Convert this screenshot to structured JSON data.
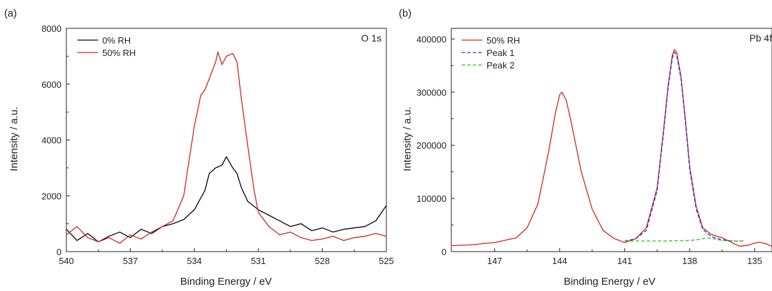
{
  "chart_data": [
    {
      "type": "line",
      "panel_label": "(a)",
      "corner_label": "O 1s",
      "xlabel": "Binding Energy / eV",
      "ylabel": "Intensity / a.u.",
      "xlim": [
        540,
        525
      ],
      "ylim": [
        0,
        8000
      ],
      "x_reversed": true,
      "xticks": [
        540,
        537,
        534,
        531,
        528,
        525
      ],
      "yticks": [
        0,
        2000,
        4000,
        6000,
        8000
      ],
      "legend_position": "top-left",
      "series": [
        {
          "name": "0% RH",
          "color": "#000000",
          "style": "solid",
          "points": [
            [
              540,
              800
            ],
            [
              539.5,
              400
            ],
            [
              539,
              650
            ],
            [
              538.5,
              350
            ],
            [
              538,
              550
            ],
            [
              537.5,
              700
            ],
            [
              537,
              500
            ],
            [
              536.5,
              800
            ],
            [
              536,
              650
            ],
            [
              535.5,
              900
            ],
            [
              535,
              1000
            ],
            [
              534.5,
              1150
            ],
            [
              534,
              1500
            ],
            [
              533.5,
              2200
            ],
            [
              533.3,
              2800
            ],
            [
              533,
              3000
            ],
            [
              532.7,
              3100
            ],
            [
              532.5,
              3400
            ],
            [
              532.2,
              3000
            ],
            [
              532,
              2800
            ],
            [
              531.8,
              2300
            ],
            [
              531.5,
              1800
            ],
            [
              531,
              1500
            ],
            [
              530.5,
              1300
            ],
            [
              530,
              1100
            ],
            [
              529.5,
              900
            ],
            [
              529,
              1000
            ],
            [
              528.5,
              750
            ],
            [
              528,
              850
            ],
            [
              527.5,
              700
            ],
            [
              527,
              800
            ],
            [
              526.5,
              850
            ],
            [
              526,
              900
            ],
            [
              525.5,
              1100
            ],
            [
              525,
              1650
            ]
          ]
        },
        {
          "name": "50% RH",
          "color": "#d42020",
          "style": "solid",
          "points": [
            [
              540,
              600
            ],
            [
              539.5,
              900
            ],
            [
              539,
              500
            ],
            [
              538.5,
              350
            ],
            [
              538,
              500
            ],
            [
              537.5,
              300
            ],
            [
              537,
              600
            ],
            [
              536.5,
              450
            ],
            [
              536,
              700
            ],
            [
              535.5,
              900
            ],
            [
              535,
              1100
            ],
            [
              534.5,
              2000
            ],
            [
              534.2,
              3500
            ],
            [
              534,
              4500
            ],
            [
              533.7,
              5600
            ],
            [
              533.5,
              5800
            ],
            [
              533.2,
              6400
            ],
            [
              533,
              6800
            ],
            [
              532.9,
              7150
            ],
            [
              532.7,
              6700
            ],
            [
              532.5,
              7000
            ],
            [
              532.2,
              7100
            ],
            [
              532,
              6800
            ],
            [
              531.8,
              5500
            ],
            [
              531.5,
              3800
            ],
            [
              531.2,
              2200
            ],
            [
              531,
              1400
            ],
            [
              530.5,
              900
            ],
            [
              530,
              600
            ],
            [
              529.5,
              700
            ],
            [
              529,
              500
            ],
            [
              528.5,
              400
            ],
            [
              528,
              450
            ],
            [
              527.5,
              550
            ],
            [
              527,
              400
            ],
            [
              526.5,
              500
            ],
            [
              526,
              550
            ],
            [
              525.5,
              650
            ],
            [
              525,
              550
            ]
          ]
        }
      ]
    },
    {
      "type": "line",
      "panel_label": "(b)",
      "corner_label": "Pb 4f",
      "xlabel": "Binding Energy / eV",
      "ylabel": "Intensity / a.u.",
      "xlim": [
        149,
        134.2
      ],
      "ylim": [
        0,
        420000
      ],
      "x_reversed": true,
      "xticks": [
        147,
        144,
        141,
        138,
        135
      ],
      "yticks": [
        0,
        100000,
        200000,
        300000,
        400000
      ],
      "legend_position": "top-left",
      "series": [
        {
          "name": "50% RH",
          "color": "#d42020",
          "style": "solid",
          "points": [
            [
              149,
              11000
            ],
            [
              148,
              13000
            ],
            [
              147,
              17000
            ],
            [
              146,
              26000
            ],
            [
              145.5,
              45000
            ],
            [
              145,
              90000
            ],
            [
              144.5,
              190000
            ],
            [
              144.2,
              260000
            ],
            [
              144,
              295000
            ],
            [
              143.9,
              300000
            ],
            [
              143.7,
              285000
            ],
            [
              143.5,
              250000
            ],
            [
              143,
              150000
            ],
            [
              142.5,
              80000
            ],
            [
              142,
              40000
            ],
            [
              141.5,
              25000
            ],
            [
              141,
              17000
            ],
            [
              140.5,
              24000
            ],
            [
              140,
              45000
            ],
            [
              139.5,
              120000
            ],
            [
              139.2,
              230000
            ],
            [
              139,
              310000
            ],
            [
              138.8,
              370000
            ],
            [
              138.7,
              380000
            ],
            [
              138.6,
              375000
            ],
            [
              138.4,
              330000
            ],
            [
              138.2,
              250000
            ],
            [
              138,
              160000
            ],
            [
              137.7,
              85000
            ],
            [
              137.4,
              45000
            ],
            [
              137,
              32000
            ],
            [
              136.5,
              26000
            ],
            [
              136,
              16000
            ],
            [
              135.7,
              10000
            ],
            [
              135.3,
              12000
            ],
            [
              135,
              16000
            ],
            [
              134.8,
              18000
            ],
            [
              134.5,
              15000
            ],
            [
              134.2,
              10000
            ]
          ]
        },
        {
          "name": "Peak 1",
          "color": "#2a2ad8",
          "style": "dashed",
          "points": [
            [
              141,
              20000
            ],
            [
              140.5,
              24000
            ],
            [
              140,
              40000
            ],
            [
              139.5,
              115000
            ],
            [
              139.2,
              225000
            ],
            [
              139,
              305000
            ],
            [
              138.8,
              365000
            ],
            [
              138.7,
              375000
            ],
            [
              138.6,
              370000
            ],
            [
              138.4,
              325000
            ],
            [
              138.2,
              245000
            ],
            [
              138,
              155000
            ],
            [
              137.7,
              80000
            ],
            [
              137.4,
              42000
            ],
            [
              137,
              28000
            ],
            [
              136.5,
              22000
            ],
            [
              136,
              20000
            ],
            [
              135.5,
              20000
            ]
          ]
        },
        {
          "name": "Peak 2",
          "color": "#22c222",
          "style": "dashed",
          "points": [
            [
              141,
              20000
            ],
            [
              140,
              20000
            ],
            [
              139,
              20000
            ],
            [
              138,
              21000
            ],
            [
              137.5,
              23000
            ],
            [
              137.2,
              26000
            ],
            [
              137,
              25000
            ],
            [
              136.5,
              21000
            ],
            [
              136,
              20000
            ],
            [
              135.5,
              20000
            ]
          ]
        }
      ]
    }
  ]
}
